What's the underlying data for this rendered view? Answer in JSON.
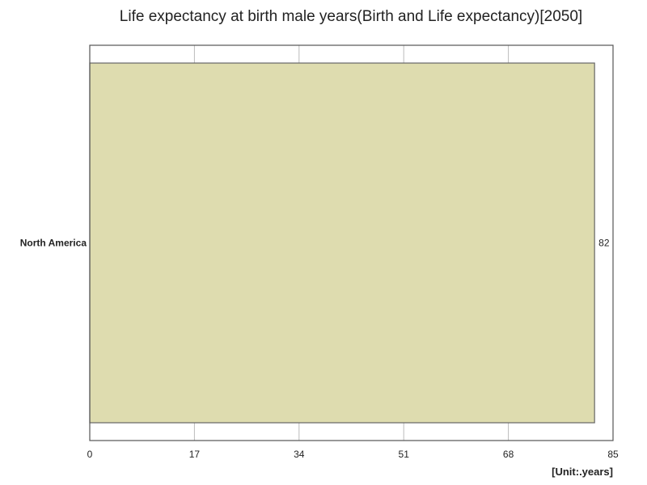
{
  "chart_data": {
    "type": "bar",
    "orientation": "horizontal",
    "title": "Life expectancy at birth male years(Birth and Life expectancy)[2050]",
    "unit": "[Unit:.years]",
    "categories": [
      "North America"
    ],
    "values": [
      82
    ],
    "value_labels": [
      "82"
    ],
    "xlim": [
      0,
      85
    ],
    "xticks": [
      0,
      17,
      34,
      51,
      68,
      85
    ],
    "grid": true,
    "bar_color": "#dedcaf",
    "bar_edge_color": "#666666"
  }
}
